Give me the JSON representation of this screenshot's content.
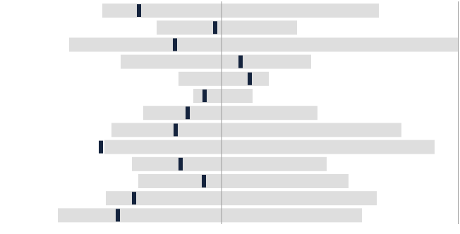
{
  "chart_data": {
    "type": "bar",
    "subtype": "diverging-range-with-marker",
    "colors": {
      "bar": "#dedede",
      "marker": "#14233d",
      "axis_line": "#9a9a9a"
    },
    "xlim": [
      -232,
      336
    ],
    "grid": false,
    "series": [
      {
        "values_left": [
          -169,
          -92,
          -216,
          -143,
          -61,
          -40,
          -111,
          -156,
          -166,
          -127,
          -118,
          -164,
          -232
        ]
      },
      {
        "values_right": [
          223,
          107,
          336,
          127,
          67,
          44,
          136,
          255,
          302,
          149,
          180,
          220,
          199
        ]
      },
      {
        "marker": [
          -117,
          -9,
          -66,
          27,
          40,
          -24,
          -48,
          -65,
          -171,
          -58,
          -25,
          -124,
          -147
        ]
      }
    ]
  }
}
